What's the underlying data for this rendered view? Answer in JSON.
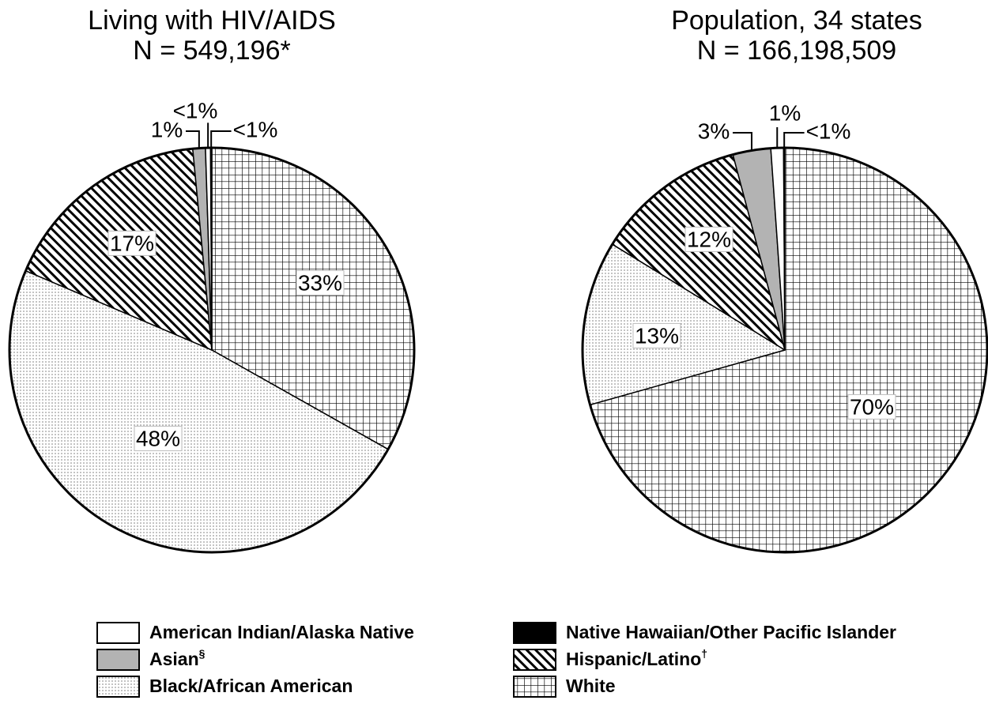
{
  "chart_data": [
    {
      "type": "pie",
      "title": "Living with HIV/AIDS",
      "subtitle": "N = 549,196*",
      "values": [
        33,
        48,
        17,
        1,
        0.4,
        0.1
      ],
      "value_labels": [
        "33%",
        "48%",
        "17%",
        "1%",
        "<1%",
        "<1%"
      ]
    },
    {
      "type": "pie",
      "title": "Population, 34 states",
      "subtitle": "N = 166,198,509",
      "values": [
        70,
        13,
        12,
        3,
        1,
        0.1
      ],
      "value_labels": [
        "70%",
        "13%",
        "12%",
        "3%",
        "1%",
        "<1%"
      ]
    }
  ],
  "legend": {
    "categories": [
      "White",
      "Black/African American",
      "Hispanic/Latino†",
      "Asian§",
      "American Indian/Alaska Native",
      "Native Hawaiian/Other Pacific Islander"
    ],
    "fills": [
      "grid",
      "dots",
      "hatch",
      "gray",
      "white",
      "black"
    ]
  }
}
